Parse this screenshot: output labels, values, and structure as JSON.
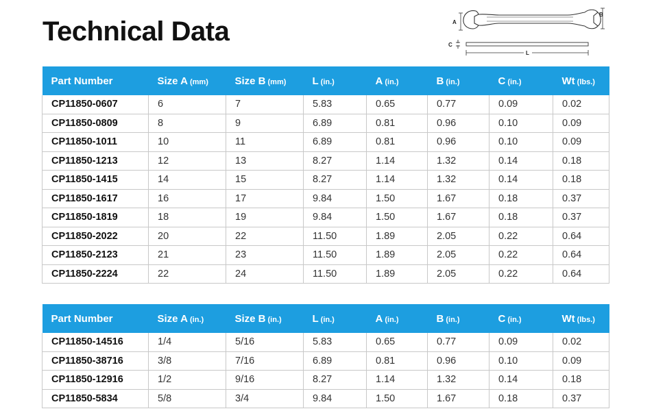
{
  "title": "Technical Data",
  "diagram": {
    "label_a": "A",
    "label_b": "B",
    "label_c": "C",
    "label_l": "L"
  },
  "table1": {
    "headers": [
      {
        "label": "Part Number",
        "unit": ""
      },
      {
        "label": "Size A",
        "unit": "(mm)"
      },
      {
        "label": "Size B",
        "unit": "(mm)"
      },
      {
        "label": "L",
        "unit": "(in.)"
      },
      {
        "label": "A",
        "unit": "(in.)"
      },
      {
        "label": "B",
        "unit": "(in.)"
      },
      {
        "label": "C",
        "unit": "(in.)"
      },
      {
        "label": "Wt",
        "unit": "(lbs.)"
      }
    ],
    "rows": [
      [
        "CP11850-0607",
        "6",
        "7",
        "5.83",
        "0.65",
        "0.77",
        "0.09",
        "0.02"
      ],
      [
        "CP11850-0809",
        "8",
        "9",
        "6.89",
        "0.81",
        "0.96",
        "0.10",
        "0.09"
      ],
      [
        "CP11850-1011",
        "10",
        "11",
        "6.89",
        "0.81",
        "0.96",
        "0.10",
        "0.09"
      ],
      [
        "CP11850-1213",
        "12",
        "13",
        "8.27",
        "1.14",
        "1.32",
        "0.14",
        "0.18"
      ],
      [
        "CP11850-1415",
        "14",
        "15",
        "8.27",
        "1.14",
        "1.32",
        "0.14",
        "0.18"
      ],
      [
        "CP11850-1617",
        "16",
        "17",
        "9.84",
        "1.50",
        "1.67",
        "0.18",
        "0.37"
      ],
      [
        "CP11850-1819",
        "18",
        "19",
        "9.84",
        "1.50",
        "1.67",
        "0.18",
        "0.37"
      ],
      [
        "CP11850-2022",
        "20",
        "22",
        "11.50",
        "1.89",
        "2.05",
        "0.22",
        "0.64"
      ],
      [
        "CP11850-2123",
        "21",
        "23",
        "11.50",
        "1.89",
        "2.05",
        "0.22",
        "0.64"
      ],
      [
        "CP11850-2224",
        "22",
        "24",
        "11.50",
        "1.89",
        "2.05",
        "0.22",
        "0.64"
      ]
    ]
  },
  "table2": {
    "headers": [
      {
        "label": "Part Number",
        "unit": ""
      },
      {
        "label": "Size A",
        "unit": "(in.)"
      },
      {
        "label": "Size B",
        "unit": "(in.)"
      },
      {
        "label": "L",
        "unit": "(in.)"
      },
      {
        "label": "A",
        "unit": "(in.)"
      },
      {
        "label": "B",
        "unit": "(in.)"
      },
      {
        "label": "C",
        "unit": "(in.)"
      },
      {
        "label": "Wt",
        "unit": "(lbs.)"
      }
    ],
    "rows": [
      [
        "CP11850-14516",
        "1/4",
        "5/16",
        "5.83",
        "0.65",
        "0.77",
        "0.09",
        "0.02"
      ],
      [
        "CP11850-38716",
        "3/8",
        "7/16",
        "6.89",
        "0.81",
        "0.96",
        "0.10",
        "0.09"
      ],
      [
        "CP11850-12916",
        "1/2",
        "9/16",
        "8.27",
        "1.14",
        "1.32",
        "0.14",
        "0.18"
      ],
      [
        "CP11850-5834",
        "5/8",
        "3/4",
        "9.84",
        "1.50",
        "1.67",
        "0.18",
        "0.37"
      ]
    ]
  },
  "colors": {
    "header_bg": "#1d9ee0",
    "header_text": "#ffffff",
    "grid": "#c8c8c8"
  }
}
